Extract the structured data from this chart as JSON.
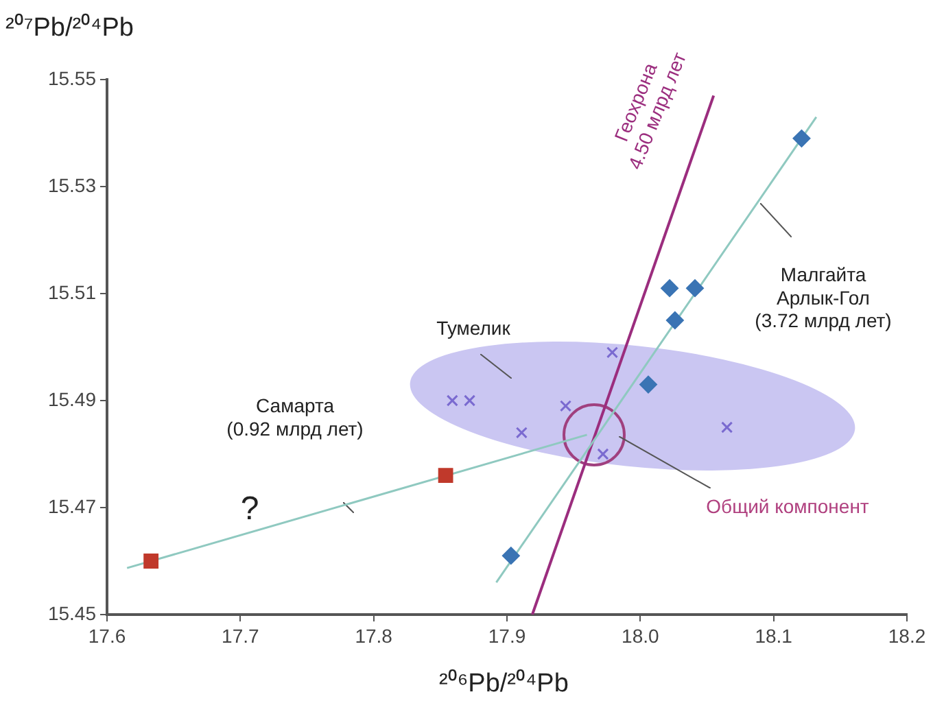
{
  "chart_data": {
    "type": "scatter",
    "xlabel": "²⁰⁶Pb/²⁰⁴Pb",
    "ylabel": "²⁰⁷Pb/²⁰⁴Pb",
    "xlim": [
      17.6,
      18.2
    ],
    "ylim": [
      15.45,
      15.55
    ],
    "xticks": [
      17.6,
      17.7,
      17.8,
      17.9,
      {
        "value": 18,
        "label": "18.0"
      },
      18.1,
      18.2
    ],
    "yticks": [
      15.45,
      15.47,
      15.49,
      15.51,
      15.53,
      15.55
    ],
    "grid": false,
    "legend": false,
    "series": [
      {
        "type": "line",
        "color": "#8fc9c0",
        "x": [
          17.615,
          17.96
        ],
        "values": [
          15.4587,
          15.4836
        ]
      },
      {
        "type": "line",
        "color": "#8fc9c0",
        "x": [
          17.892,
          18.132
        ],
        "values": [
          15.456,
          15.543
        ]
      },
      {
        "type": "line",
        "color": "#9b2d7e",
        "x": [
          17.919,
          18.055
        ],
        "values": [
          15.45,
          15.547
        ]
      },
      {
        "marker": "cross",
        "color": "#7a6ad0",
        "x": [
          17.859,
          17.872,
          17.911,
          17.944,
          17.979,
          17.972,
          18.065
        ],
        "values": [
          15.49,
          15.49,
          15.484,
          15.489,
          15.499,
          15.48,
          15.485
        ]
      },
      {
        "marker": "diamond",
        "color": "#3a74b4",
        "x": [
          18.121,
          18.022,
          18.041,
          18.026,
          18.006,
          17.903
        ],
        "values": [
          15.539,
          15.511,
          15.511,
          15.505,
          15.493,
          15.461
        ]
      },
      {
        "marker": "square",
        "color": "#c0392b",
        "x": [
          17.633,
          17.854
        ],
        "values": [
          15.46,
          15.476
        ]
      }
    ],
    "annotations": [
      "Тумелик",
      "Малгайта\nАрлык-Гол\n(3.72 млрд лет)",
      "Самарта\n(0.92 млрд лет)",
      "?",
      "Общий компонент",
      "Геохрона\n4.50 млрд лет"
    ]
  }
}
